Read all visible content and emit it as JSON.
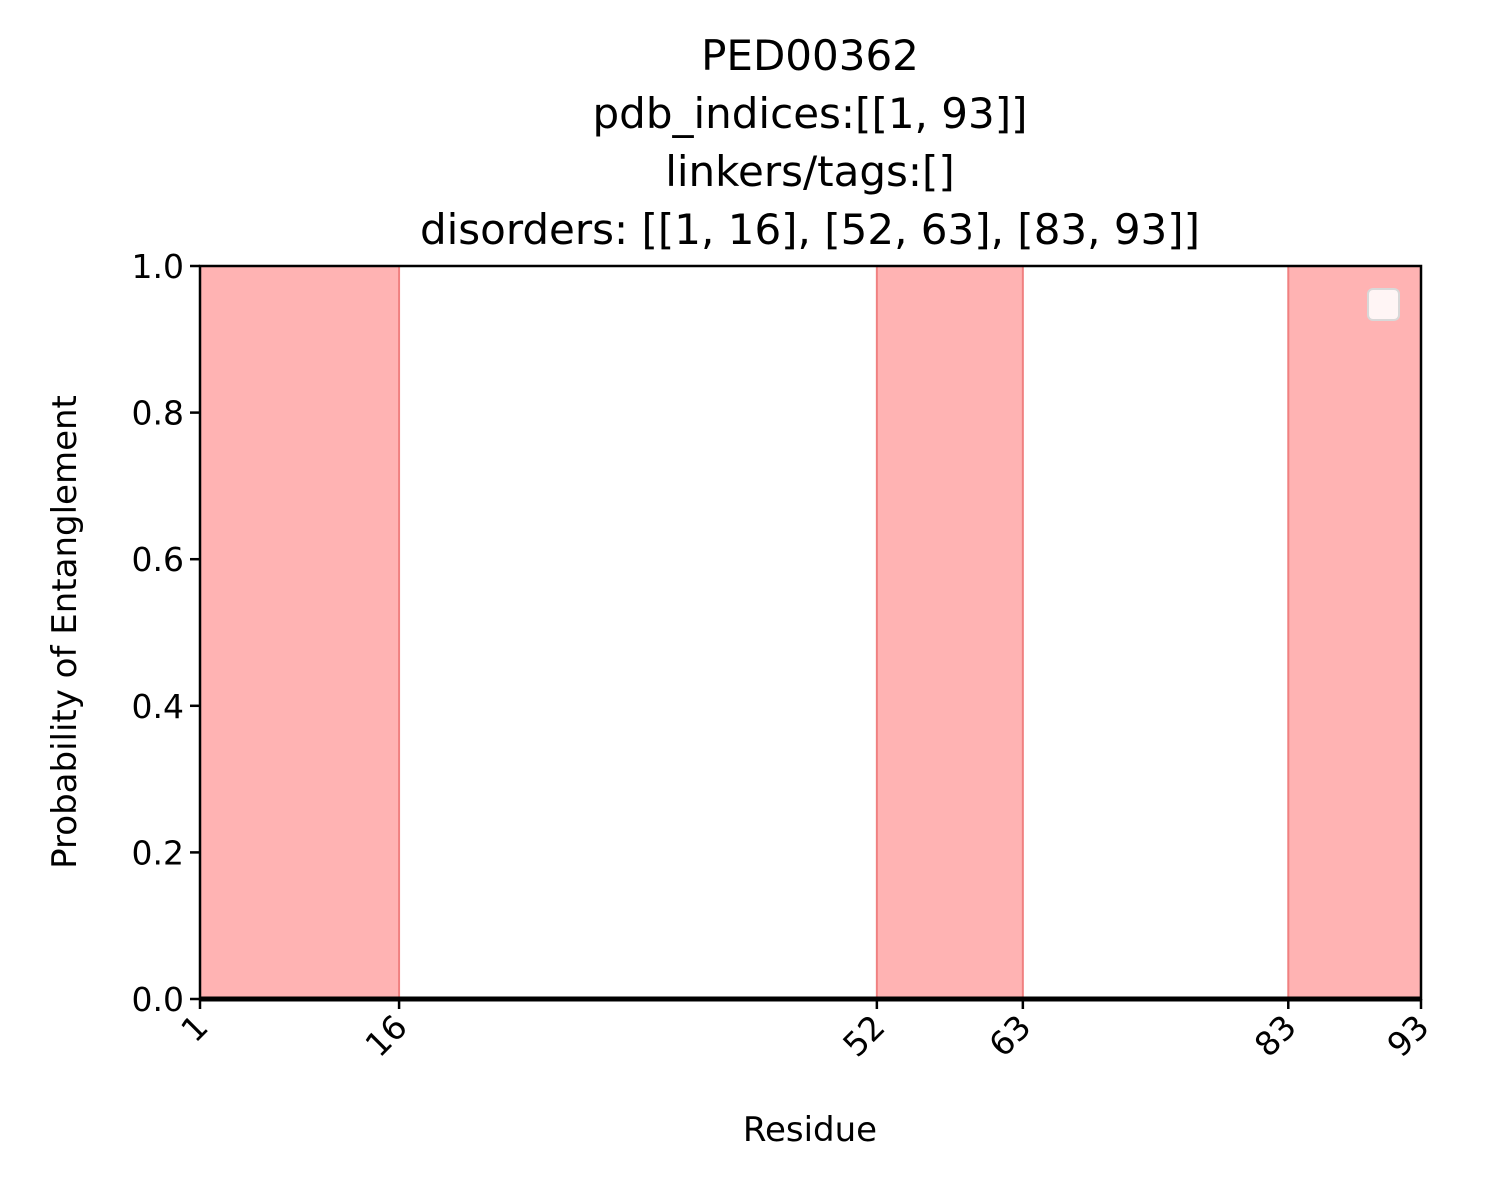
{
  "chart_data": {
    "type": "area",
    "title_lines": [
      "PED00362",
      "pdb_indices:[[1, 93]]",
      "linkers/tags:[]",
      "disorders: [[1, 16], [52, 63], [83, 93]]"
    ],
    "xlabel": "Residue",
    "ylabel": "Probability of Entanglement",
    "xlim": [
      1,
      93
    ],
    "ylim": [
      0,
      1
    ],
    "x_ticks": [
      1,
      16,
      52,
      63,
      83,
      93
    ],
    "y_ticks": [
      "0.0",
      "0.2",
      "0.4",
      "0.6",
      "0.8",
      "1.0"
    ],
    "disorder_regions": [
      [
        1,
        16
      ],
      [
        52,
        63
      ],
      [
        83,
        93
      ]
    ],
    "series": [
      {
        "x": [
          1,
          93
        ],
        "y": [
          0,
          0
        ]
      }
    ],
    "grid": false,
    "legend_position": "top-right",
    "colors": {
      "region_fill": "#ffb3b3",
      "region_edge": "#f08080",
      "line": "#000000"
    }
  }
}
